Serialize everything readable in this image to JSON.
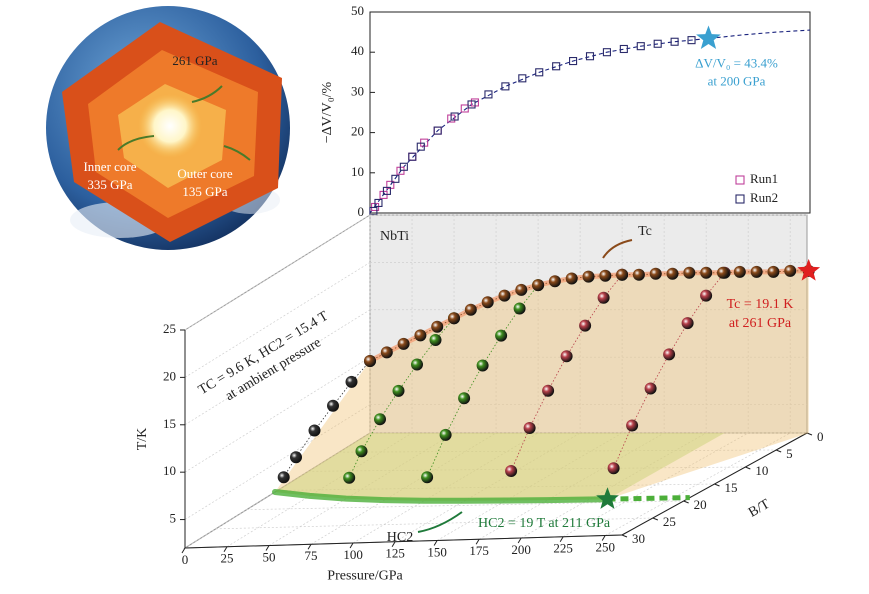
{
  "earth": {
    "labels": [
      "261 GPa",
      "Inner core",
      "335 GPa",
      "Outer core",
      "135 GPa"
    ]
  },
  "chart_data": [
    {
      "type": "scatter",
      "y_label": "−ΔV/V₀/%",
      "xlim": [
        0,
        260
      ],
      "ylim": [
        0,
        50
      ],
      "yticks": [
        0,
        10,
        20,
        30,
        40,
        50
      ],
      "legend": "lower right",
      "series": [
        {
          "color": "#1a237e",
          "style": "dashed",
          "x": [
            0,
            20,
            40,
            60,
            80,
            100,
            120,
            140,
            160,
            180,
            200,
            220,
            240,
            260
          ],
          "values": [
            0,
            11.5,
            20.5,
            27,
            31.5,
            35,
            37.8,
            40,
            41.5,
            42.6,
            43.4,
            44.3,
            45,
            45.5
          ]
        },
        {
          "name": "Run1",
          "color": "#c0409a",
          "x": [
            3,
            8,
            12,
            18,
            25,
            32,
            40,
            48,
            56,
            62
          ],
          "values": [
            1.5,
            4.5,
            7,
            10.5,
            14,
            17.5,
            20.5,
            23.5,
            26,
            27.5
          ]
        },
        {
          "name": "Run2",
          "color": "#2a2a6a",
          "x": [
            2,
            5,
            10,
            15,
            20,
            25,
            30,
            40,
            50,
            60,
            70,
            80,
            90,
            100,
            110,
            120,
            130,
            140,
            150,
            160,
            170,
            180,
            190,
            200
          ],
          "values": [
            0.5,
            2.5,
            5.5,
            8.5,
            11.5,
            14,
            16.5,
            20.5,
            24,
            27,
            29.5,
            31.5,
            33.5,
            35,
            36.5,
            37.8,
            39,
            40,
            40.8,
            41.5,
            42.1,
            42.6,
            43,
            43.4
          ]
        }
      ],
      "annotation": {
        "text": "ΔV/V₀ = 43.4%",
        "text2": "at 200 GPa",
        "x": 200,
        "y": 43.4,
        "color": "#3aa0d0"
      }
    },
    {
      "type": "scatter3d",
      "title": "NbTi",
      "x_label": "Pressure/GPa",
      "y_label": "B/T",
      "z_label": "T/K",
      "xlim": [
        0,
        260
      ],
      "xticks": [
        0,
        25,
        50,
        75,
        100,
        125,
        150,
        175,
        200,
        225,
        250
      ],
      "ylim": [
        0,
        30
      ],
      "yticks": [
        0,
        5,
        10,
        15,
        20,
        25,
        30
      ],
      "zlim": [
        2,
        25
      ],
      "zticks": [
        5,
        10,
        15,
        20,
        25
      ],
      "tc_curve": {
        "color": "#8a4a1a",
        "x": [
          0,
          10,
          20,
          30,
          40,
          50,
          60,
          70,
          80,
          90,
          100,
          110,
          120,
          130,
          140,
          150,
          160,
          170,
          180,
          190,
          200,
          210,
          220,
          230,
          240,
          250,
          261
        ],
        "y": [
          0,
          0,
          0,
          0,
          0,
          0,
          0,
          0,
          0,
          0,
          0,
          0,
          0,
          0,
          0,
          0,
          0,
          0,
          0,
          0,
          0,
          0,
          0,
          0,
          0,
          0,
          0
        ],
        "z": [
          9.6,
          10.5,
          11.4,
          12.3,
          13.2,
          14.1,
          15.0,
          15.8,
          16.5,
          17.1,
          17.6,
          18.0,
          18.3,
          18.5,
          18.6,
          18.7,
          18.7,
          18.8,
          18.8,
          18.9,
          18.9,
          18.9,
          19.0,
          19.0,
          19.0,
          19.1,
          19.1
        ]
      },
      "hc2_curve": {
        "color": "#4caf3a",
        "x": [
          0,
          25,
          50,
          75,
          100,
          125,
          150,
          175,
          200,
          211
        ],
        "y": [
          15.4,
          16.6,
          17.5,
          18.1,
          18.5,
          18.7,
          18.85,
          18.95,
          19.0,
          19.0
        ],
        "z": [
          2,
          2,
          2,
          2,
          2,
          2,
          2,
          2,
          2,
          2
        ]
      },
      "series": [
        {
          "color": "#333333",
          "x": [
            0,
            0,
            0,
            0,
            0,
            0
          ],
          "y": [
            0,
            3,
            6,
            9,
            12,
            14
          ],
          "z": [
            9.6,
            8.6,
            7.3,
            5.9,
            4.3,
            3.0
          ]
        },
        {
          "color": "#3f8f1f",
          "x": [
            50,
            50,
            50,
            50,
            50,
            50,
            50
          ],
          "y": [
            0,
            3,
            6,
            9,
            12,
            15,
            17
          ],
          "z": [
            14.1,
            13.0,
            11.6,
            10.0,
            8.2,
            6.0,
            4.0
          ]
        },
        {
          "color": "#3f8f1f",
          "x": [
            100,
            100,
            100,
            100,
            100,
            100,
            100
          ],
          "y": [
            0,
            3,
            6,
            9,
            12,
            15,
            18
          ],
          "z": [
            17.6,
            16.3,
            14.6,
            12.6,
            10.3,
            7.6,
            4.3
          ]
        },
        {
          "color": "#b8404a",
          "x": [
            150,
            150,
            150,
            150,
            150,
            150,
            150
          ],
          "y": [
            0,
            3,
            6,
            9,
            12,
            15,
            18
          ],
          "z": [
            18.7,
            17.4,
            15.6,
            13.5,
            11.0,
            8.2,
            4.8
          ]
        },
        {
          "color": "#b8404a",
          "x": [
            211,
            211,
            211,
            211,
            211,
            211,
            211
          ],
          "y": [
            0,
            3,
            6,
            9,
            12,
            15,
            18
          ],
          "z": [
            18.9,
            17.6,
            15.8,
            13.6,
            11.1,
            8.3,
            4.9
          ]
        }
      ],
      "markers": [
        {
          "x": 261,
          "y": 0,
          "z": 19.1,
          "color": "#e02020"
        },
        {
          "x": 211,
          "y": 19,
          "z": 2,
          "color": "#1f7a3a"
        }
      ],
      "annotations": [
        {
          "text": "Tc",
          "color": "#222222"
        },
        {
          "text": "Tc = 19.1 K",
          "text2": "at 261 GPa",
          "color": "#d02020"
        },
        {
          "text": "HC2",
          "color": "#222222"
        },
        {
          "text": "HC2 = 19 T at 211 GPa",
          "color": "#1f7a3a"
        },
        {
          "text": "TC = 9.6 K, HC2 = 15.4 T",
          "text2": "at ambient pressure",
          "color": "#222222"
        }
      ]
    }
  ]
}
